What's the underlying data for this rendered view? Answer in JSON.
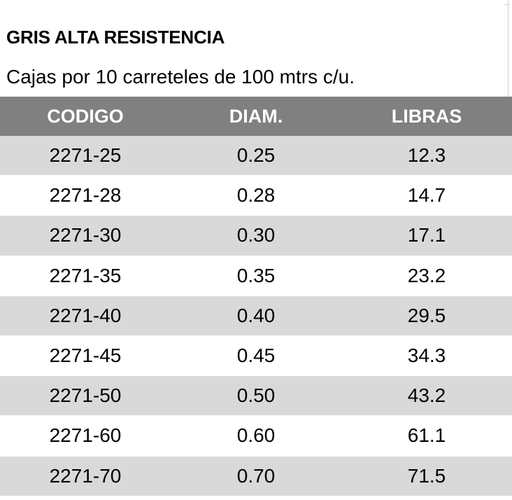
{
  "title": "GRIS ALTA RESISTENCIA",
  "subtitle": "Cajas por 10 carreteles de 100 mtrs c/u.",
  "table": {
    "headers": [
      "CODIGO",
      "DIAM.",
      "LIBRAS"
    ],
    "rows": [
      [
        "2271-25",
        "0.25",
        "12.3"
      ],
      [
        "2271-28",
        "0.28",
        "14.7"
      ],
      [
        "2271-30",
        "0.30",
        "17.1"
      ],
      [
        "2271-35",
        "0.35",
        "23.2"
      ],
      [
        "2271-40",
        "0.40",
        "29.5"
      ],
      [
        "2271-45",
        "0.45",
        "34.3"
      ],
      [
        "2271-50",
        "0.50",
        "43.2"
      ],
      [
        "2271-60",
        "0.60",
        "61.1"
      ],
      [
        "2271-70",
        "0.70",
        "71.5"
      ]
    ]
  },
  "colors": {
    "header_bg": "#808080",
    "header_text": "#ffffff",
    "stripe_bg": "#d9d9d9",
    "text": "#000000"
  }
}
